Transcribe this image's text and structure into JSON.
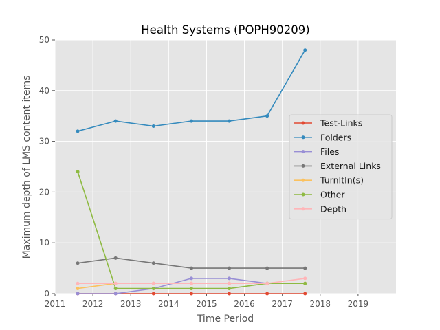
{
  "chart_data": {
    "type": "line",
    "title": "Health Systems (POPH90209)",
    "xlabel": "Time Period",
    "ylabel": "Maximum depth of LMS content items",
    "xlim": [
      2011,
      2020
    ],
    "ylim": [
      0,
      50
    ],
    "xticks": [
      2011,
      2012,
      2013,
      2014,
      2015,
      2016,
      2017,
      2018,
      2019
    ],
    "yticks": [
      0,
      10,
      20,
      30,
      40,
      50
    ],
    "grid": true,
    "legend_position": "center-right",
    "x": [
      2011.6,
      2012.6,
      2013.6,
      2014.6,
      2015.6,
      2016.6,
      2017.6
    ],
    "series": [
      {
        "name": "Test-Links",
        "color": "#E24A33",
        "values": [
          0,
          0,
          0,
          0,
          0,
          0,
          0
        ]
      },
      {
        "name": "Folders",
        "color": "#348ABD",
        "values": [
          32,
          34,
          33,
          34,
          34,
          35,
          48
        ]
      },
      {
        "name": "Files",
        "color": "#988ED5",
        "values": [
          0,
          0,
          1,
          3,
          3,
          2,
          2
        ]
      },
      {
        "name": "External Links",
        "color": "#777777",
        "values": [
          6,
          7,
          6,
          5,
          5,
          5,
          5
        ]
      },
      {
        "name": "TurnItIn(s)",
        "color": "#FBC15E",
        "values": [
          1,
          2,
          2,
          2,
          2,
          2,
          2
        ]
      },
      {
        "name": "Other",
        "color": "#8EBA42",
        "values": [
          24,
          1,
          1,
          1,
          1,
          2,
          2
        ]
      },
      {
        "name": "Depth",
        "color": "#FFB5B8",
        "values": [
          2,
          2,
          2,
          2,
          2,
          2,
          3
        ]
      }
    ]
  }
}
